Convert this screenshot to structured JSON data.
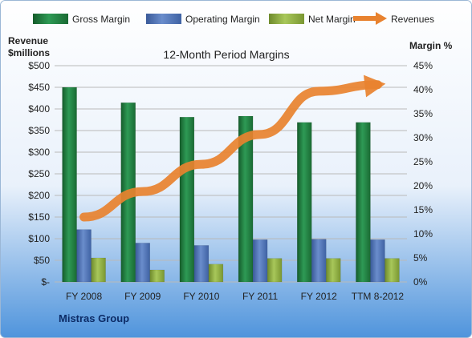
{
  "company": "Mistras Group",
  "chart_data": {
    "type": "bar",
    "title": "12-Month Period Margins",
    "left_axis_title": [
      "Revenue",
      "$millions"
    ],
    "right_axis_title": "Margin %",
    "categories": [
      "FY 2008",
      "FY 2009",
      "FY 2010",
      "FY 2011",
      "FY 2012",
      "TTM 8-2012"
    ],
    "left_axis": {
      "range": [
        0,
        500
      ],
      "ticks": [
        "$-",
        "$50",
        "$100",
        "$150",
        "$200",
        "$250",
        "$300",
        "$350",
        "$400",
        "$450",
        "$500"
      ]
    },
    "right_axis": {
      "range": [
        0,
        45
      ],
      "ticks": [
        "0%",
        "5%",
        "10%",
        "15%",
        "20%",
        "25%",
        "30%",
        "35%",
        "40%",
        "45%"
      ]
    },
    "series": [
      {
        "name": "Gross Margin",
        "kind": "bar",
        "axis": "right",
        "color": "#1e7a3c",
        "values": [
          40.5,
          37.3,
          34.3,
          34.5,
          33.2,
          33.2
        ]
      },
      {
        "name": "Operating Margin",
        "kind": "bar",
        "axis": "right",
        "color": "#4a6fb5",
        "values": [
          10.9,
          8.1,
          7.6,
          8.8,
          8.9,
          8.8
        ]
      },
      {
        "name": "Net Margin",
        "kind": "bar",
        "axis": "right",
        "color": "#8aaa3e",
        "values": [
          5.0,
          2.5,
          3.7,
          4.9,
          4.9,
          4.9
        ]
      },
      {
        "name": "Revenues",
        "kind": "line",
        "axis": "left",
        "color": "#e8822f",
        "values": [
          150,
          209,
          272,
          341,
          441,
          456
        ]
      }
    ],
    "gridlines": true,
    "legend_position": "top"
  }
}
